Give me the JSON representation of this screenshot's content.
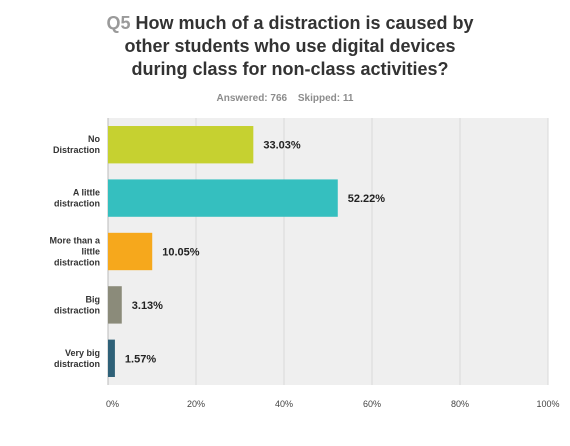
{
  "header": {
    "question_number": "Q5",
    "title_lines": [
      "How much of a distraction is caused by",
      "other students who use digital devices",
      "during class for non-class activities?"
    ],
    "answered": "Answered: 766",
    "skipped": "Skipped: 11"
  },
  "chart_data": {
    "type": "bar",
    "orientation": "horizontal",
    "categories": [
      [
        "No",
        "Distraction"
      ],
      [
        "A little",
        "distraction"
      ],
      [
        "More than a",
        "little",
        "distraction"
      ],
      [
        "Big",
        "distraction"
      ],
      [
        "Very big",
        "distraction"
      ]
    ],
    "values": [
      33.03,
      52.22,
      10.05,
      3.13,
      1.57
    ],
    "value_labels": [
      "33.03%",
      "52.22%",
      "10.05%",
      "3.13%",
      "1.57%"
    ],
    "colors": [
      "#c6d130",
      "#35bfbf",
      "#f6a81c",
      "#8b8b7a",
      "#2f6178"
    ],
    "xlim": [
      0,
      100
    ],
    "xticks": [
      0,
      20,
      40,
      60,
      80,
      100
    ],
    "xtick_labels": [
      "0%",
      "20%",
      "40%",
      "60%",
      "80%",
      "100%"
    ],
    "grid": true,
    "plot_background": "#efefef"
  }
}
